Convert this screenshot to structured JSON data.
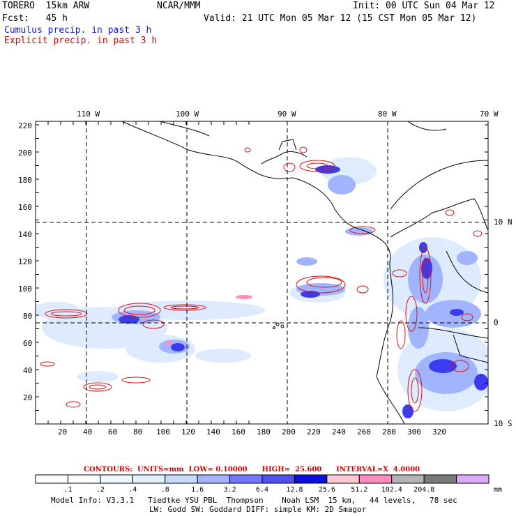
{
  "header": {
    "model": "TORERO  15km ARW",
    "org": "NCAR/MMM",
    "init": "Init: 00 UTC Sun 04 Mar 12",
    "fcst": "Fcst:   45 h",
    "valid": "Valid: 21 UTC Mon 05 Mar 12 (15 CST Mon 05 Mar 12)",
    "field_cumulus": "Cumulus precip. in past 3 h",
    "field_explicit": "Explicit precip. in past 3 h"
  },
  "map": {
    "lon_labels": [
      "110 W",
      "100 W",
      "90 W",
      "80 W",
      "70 W"
    ],
    "lat_labels": [
      "10 N",
      "0",
      "10 S"
    ],
    "y_ticks": [
      "220",
      "200",
      "180",
      "160",
      "140",
      "120",
      "100",
      "80",
      "60",
      "40",
      "20"
    ],
    "x_ticks": [
      "20",
      "40",
      "60",
      "80",
      "100",
      "120",
      "140",
      "160",
      "180",
      "200",
      "220",
      "240",
      "260",
      "280",
      "300",
      "320"
    ]
  },
  "contour_info": {
    "label": "CONTOURS:  UNITS=mm  LOW= 0.10000      HIGH=  25.600      INTERVAL=X  4.0000"
  },
  "colorbar": {
    "labels": [
      ".1",
      ".2",
      ".4",
      ".8",
      "1.6",
      "3.2",
      "6.4",
      "12.8",
      "25.6",
      "51.2",
      "102.4",
      "204.8"
    ],
    "unit": "mm",
    "colors": [
      "#ffffff",
      "#ffffff",
      "#f0f8ff",
      "#e0f0ff",
      "#c8dcff",
      "#a0b4ff",
      "#7078ff",
      "#5050ee",
      "#1010dd",
      "#ffc8d2",
      "#ff8cbe",
      "#b4b4b4",
      "#7a7a7a",
      "#dcaaff"
    ]
  },
  "footer": {
    "line1": "Model Info: V3.3.1   Tiedtke YSU PBL  Thompson    Noah LSM  15 km,   44 levels,   78 sec",
    "line2": "LW: Godd SW: Goddard DIFF: simple KM: 2D Smagor"
  }
}
